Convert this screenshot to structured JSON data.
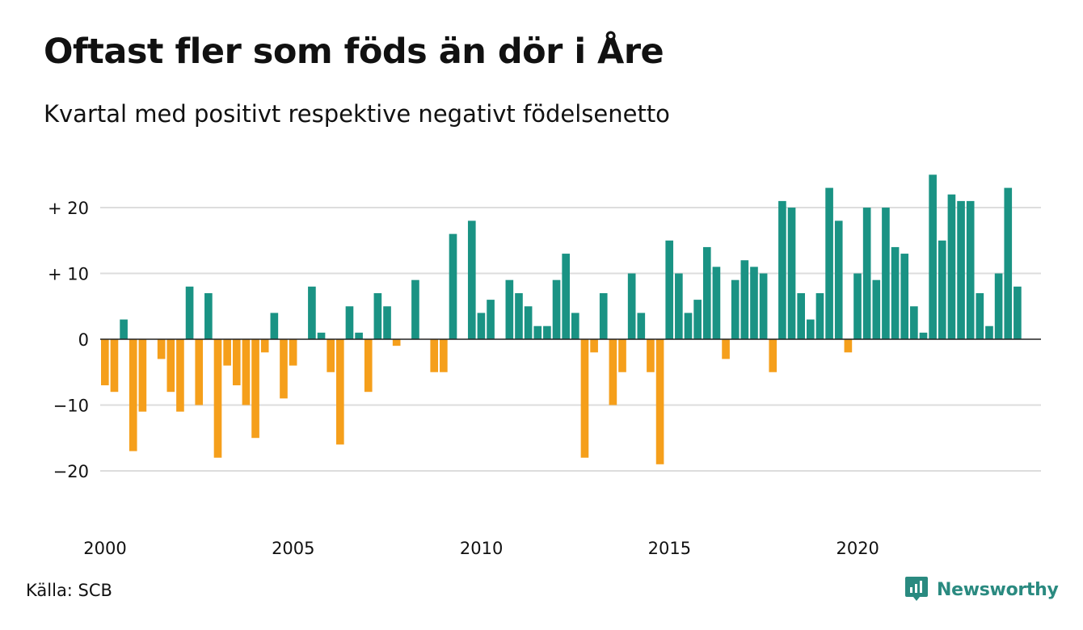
{
  "title": "Oftast fler som föds än dör i Åre",
  "subtitle": "Kvartal med positivt respektive negativt födelsenetto",
  "source": "Källa: SCB",
  "brand": {
    "name": "Newsworthy",
    "icon": "newsworthy-logo-icon",
    "color": "#2a8a80"
  },
  "colors": {
    "positive": "#1a9384",
    "negative": "#f59f1b",
    "grid": "#dddddd",
    "zero_line": "#222222"
  },
  "chart_data": {
    "type": "bar",
    "title": "Oftast fler som föds än dör i Åre",
    "subtitle": "Kvartal med positivt respektive negativt födelsenetto",
    "xlabel": "",
    "ylabel": "",
    "x_start_year": 2000,
    "periods_per_year": 4,
    "xlim": [
      2000,
      2025
    ],
    "ylim": [
      -27,
      27
    ],
    "y_ticks": [
      {
        "value": 20,
        "label": "+ 20"
      },
      {
        "value": 10,
        "label": "+ 10"
      },
      {
        "value": 0,
        "label": "0"
      },
      {
        "value": -10,
        "label": "−10"
      },
      {
        "value": -20,
        "label": "−20"
      }
    ],
    "x_ticks": [
      {
        "value": 2000,
        "label": "2000"
      },
      {
        "value": 2005,
        "label": "2005"
      },
      {
        "value": 2010,
        "label": "2010"
      },
      {
        "value": 2015,
        "label": "2015"
      },
      {
        "value": 2020,
        "label": "2020"
      }
    ],
    "grid": true,
    "values": [
      -7,
      -8,
      3,
      -17,
      -11,
      0,
      -3,
      -8,
      -11,
      8,
      -10,
      7,
      -18,
      -4,
      -7,
      -10,
      -15,
      -2,
      4,
      -9,
      -4,
      0,
      8,
      1,
      -5,
      -16,
      5,
      1,
      -8,
      7,
      5,
      -1,
      0,
      9,
      0,
      -5,
      -5,
      16,
      0,
      18,
      4,
      6,
      0,
      9,
      7,
      5,
      2,
      2,
      9,
      13,
      4,
      -18,
      -2,
      7,
      -10,
      -5,
      10,
      4,
      -5,
      -19,
      15,
      10,
      4,
      6,
      14,
      11,
      -3,
      9,
      12,
      11,
      10,
      -5,
      21,
      20,
      7,
      3,
      7,
      23,
      18,
      -2,
      10,
      20,
      9,
      20,
      14,
      13,
      5,
      1,
      25,
      15,
      22,
      21,
      21,
      7,
      2,
      10,
      23,
      8
    ]
  }
}
